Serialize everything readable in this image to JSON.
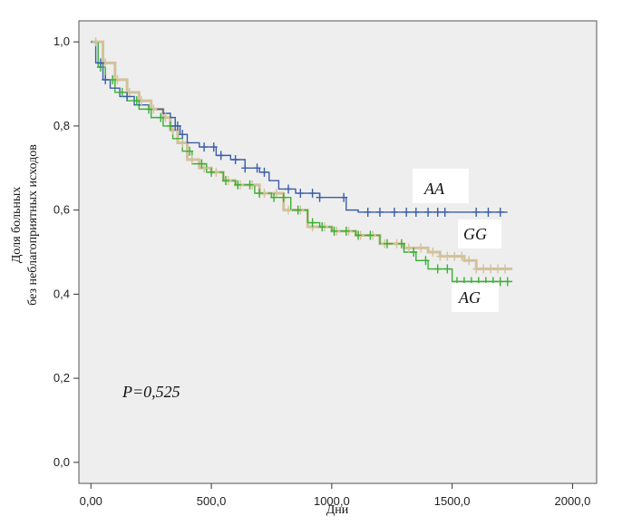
{
  "chart_data": {
    "type": "line",
    "subtype": "kaplan-meier",
    "xlabel": "Дни",
    "ylabel_lines": [
      "Доля больных",
      "без неблагоприятных исходов"
    ],
    "xlim": [
      -50,
      2100
    ],
    "ylim": [
      -0.05,
      1.05
    ],
    "x_ticks": [
      0,
      500,
      1000,
      1500,
      2000
    ],
    "x_tick_labels": [
      "0,00",
      "500,0",
      "1000,0",
      "1500,0",
      "2000,0"
    ],
    "y_ticks": [
      0.0,
      0.2,
      0.4,
      0.6,
      0.8,
      1.0
    ],
    "y_tick_labels": [
      "0,0",
      "0,2",
      "0,4",
      "0,6",
      "0,8",
      "1,0"
    ],
    "annotation": "P=0,525",
    "plot_background": "#eeeeee",
    "grid": false,
    "series": [
      {
        "name": "AA",
        "color": "#3a5ea8",
        "x": [
          0,
          20,
          50,
          80,
          120,
          180,
          240,
          300,
          330,
          350,
          370,
          400,
          450,
          520,
          580,
          640,
          700,
          740,
          780,
          850,
          950,
          1060,
          1110,
          1730
        ],
        "y": [
          1.0,
          0.95,
          0.91,
          0.89,
          0.87,
          0.85,
          0.84,
          0.83,
          0.82,
          0.8,
          0.78,
          0.76,
          0.75,
          0.73,
          0.72,
          0.7,
          0.69,
          0.67,
          0.65,
          0.64,
          0.63,
          0.6,
          0.595,
          0.595
        ],
        "censor_x": [
          40,
          60,
          150,
          350,
          360,
          380,
          470,
          510,
          540,
          600,
          640,
          690,
          720,
          820,
          870,
          920,
          950,
          1050,
          1150,
          1200,
          1260,
          1310,
          1350,
          1400,
          1440,
          1470,
          1600,
          1650,
          1700
        ]
      },
      {
        "name": "GG",
        "color": "#d2c29b",
        "x": [
          0,
          50,
          100,
          150,
          200,
          250,
          300,
          330,
          360,
          400,
          450,
          500,
          550,
          600,
          700,
          800,
          900,
          1000,
          1100,
          1200,
          1300,
          1400,
          1450,
          1550,
          1600,
          1750
        ],
        "y": [
          1.0,
          0.95,
          0.91,
          0.88,
          0.86,
          0.84,
          0.82,
          0.79,
          0.76,
          0.72,
          0.7,
          0.69,
          0.67,
          0.66,
          0.64,
          0.6,
          0.56,
          0.55,
          0.54,
          0.52,
          0.51,
          0.5,
          0.49,
          0.48,
          0.46,
          0.46
        ],
        "censor_x": [
          20,
          60,
          110,
          160,
          210,
          260,
          310,
          340,
          380,
          420,
          470,
          520,
          570,
          620,
          670,
          720,
          770,
          820,
          870,
          920,
          970,
          1020,
          1070,
          1120,
          1170,
          1220,
          1270,
          1320,
          1370,
          1420,
          1450,
          1480,
          1510,
          1540,
          1570,
          1600,
          1630,
          1660,
          1690,
          1720
        ]
      },
      {
        "name": "AG",
        "color": "#39b035",
        "x": [
          0,
          30,
          60,
          100,
          150,
          200,
          250,
          300,
          340,
          380,
          420,
          480,
          550,
          600,
          680,
          750,
          830,
          900,
          950,
          1000,
          1100,
          1200,
          1300,
          1350,
          1400,
          1500,
          1750
        ],
        "y": [
          1.0,
          0.94,
          0.91,
          0.88,
          0.86,
          0.84,
          0.82,
          0.8,
          0.77,
          0.74,
          0.71,
          0.69,
          0.67,
          0.66,
          0.64,
          0.63,
          0.6,
          0.57,
          0.56,
          0.55,
          0.54,
          0.52,
          0.5,
          0.48,
          0.46,
          0.43,
          0.43
        ],
        "censor_x": [
          40,
          90,
          130,
          190,
          240,
          290,
          330,
          410,
          460,
          500,
          560,
          610,
          660,
          700,
          760,
          800,
          860,
          920,
          960,
          1010,
          1060,
          1110,
          1160,
          1230,
          1290,
          1340,
          1390,
          1440,
          1480,
          1520,
          1550,
          1580,
          1610,
          1640,
          1670,
          1700,
          1730
        ]
      }
    ]
  }
}
